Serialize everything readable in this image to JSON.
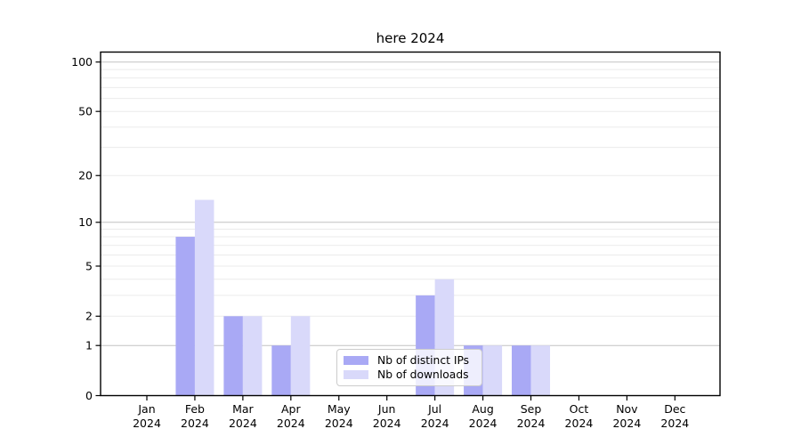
{
  "chart_data": {
    "type": "bar",
    "title": "here 2024",
    "categories": [
      "Jan 2024",
      "Feb 2024",
      "Mar 2024",
      "Apr 2024",
      "May 2024",
      "Jun 2024",
      "Jul 2024",
      "Aug 2024",
      "Sep 2024",
      "Oct 2024",
      "Nov 2024",
      "Dec 2024"
    ],
    "series": [
      {
        "name": "Nb of distinct IPs",
        "color": "#a9a9f5",
        "values": [
          0,
          8,
          2,
          1,
          0,
          0,
          3,
          1,
          1,
          0,
          0,
          0
        ]
      },
      {
        "name": "Nb of downloads",
        "color": "#d9d9fa",
        "values": [
          0,
          14,
          2,
          2,
          0,
          0,
          4,
          1,
          1,
          0,
          0,
          0
        ]
      }
    ],
    "xlabel": "",
    "ylabel": "",
    "yscale": "log1p",
    "ylim": [
      0,
      115
    ],
    "ytick_labels": [
      0,
      1,
      2,
      5,
      10,
      20,
      50,
      100
    ],
    "grid": "horizontal",
    "legend_position": "inside-bottom-center",
    "colors": {
      "frame": "#000000",
      "major_grid": "#c2c2c2",
      "minor_grid": "#ebebeb",
      "text": "#000000",
      "background": "#ffffff"
    }
  }
}
